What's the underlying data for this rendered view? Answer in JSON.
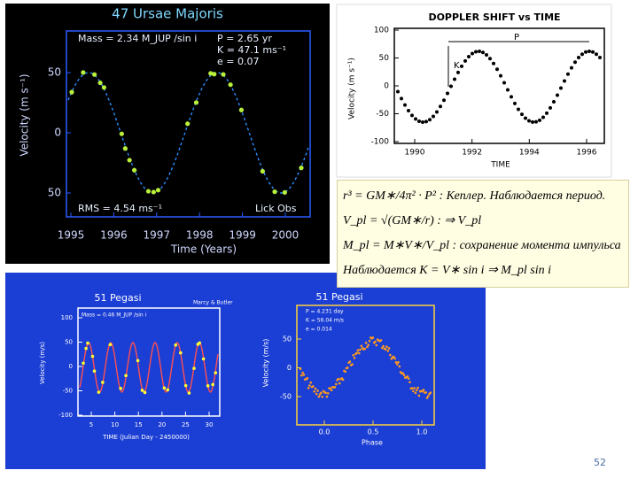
{
  "slide": {
    "page_number": "52",
    "panels": [
      {
        "title": "47 Ursae Majoris",
        "y_label": "Velocity (m s⁻¹)",
        "x_label": "Time (Years)",
        "yticks": [
          "50",
          "0",
          "50"
        ],
        "xticks": [
          "1995",
          "1996",
          "1997",
          "1998",
          "1999",
          "2000"
        ],
        "notes": [
          "Mass = 2.34 M_JUP /sin i",
          "P = 2.65 yr",
          "K = 47.1 ms⁻¹",
          "e = 0.07",
          "RMS = 4.54 ms⁻¹",
          "Lick Obs"
        ]
      },
      {
        "title": "DOPPLER SHIFT vs TIME",
        "y_label": "Velocity (m s⁻¹)",
        "x_label": "TIME",
        "yticks": [
          "100",
          "50",
          "0",
          "-50",
          "-100"
        ],
        "xticks": [
          "1990",
          "1992",
          "1994",
          "1996"
        ],
        "notes": [
          "P",
          "K"
        ]
      },
      {
        "title": "51 Pegasi",
        "y_label": "Velocity (m/s)",
        "x_label": "TIME (Julian Day - 2450000)",
        "yticks": [
          "100",
          "50",
          "0",
          "-50",
          "-100"
        ],
        "xticks": [
          "5",
          "10",
          "15",
          "20",
          "25",
          "30"
        ],
        "notes": [
          "Mass = 0.46 M_JUP /sin i",
          "Marcy & Butler"
        ]
      },
      {
        "title": "51 Pegasi",
        "y_label": "Velocity (m/s)",
        "x_label": "Phase",
        "yticks": [
          "50",
          "0",
          "-50"
        ],
        "xticks": [
          "0.0",
          "0.5",
          "1.0"
        ],
        "notes": [
          "P = 4.231 day",
          "K = 56.04 m/s",
          "e = 0.014"
        ]
      }
    ],
    "formulas": [
      {
        "formula": "r³ = GM∗/4π² · P²",
        "text": ": Кеплер. Наблюдается период."
      },
      {
        "formula": "V_pl = √(GM∗/r)",
        "text": ": ⇒ V_pl"
      },
      {
        "formula": "M_pl = M∗V∗/V_pl",
        "text": ": сохранение момента импульса"
      },
      {
        "formula": "Наблюдается K = V∗ sin i ⇒ M_pl sin i",
        "text": ""
      }
    ]
  }
}
